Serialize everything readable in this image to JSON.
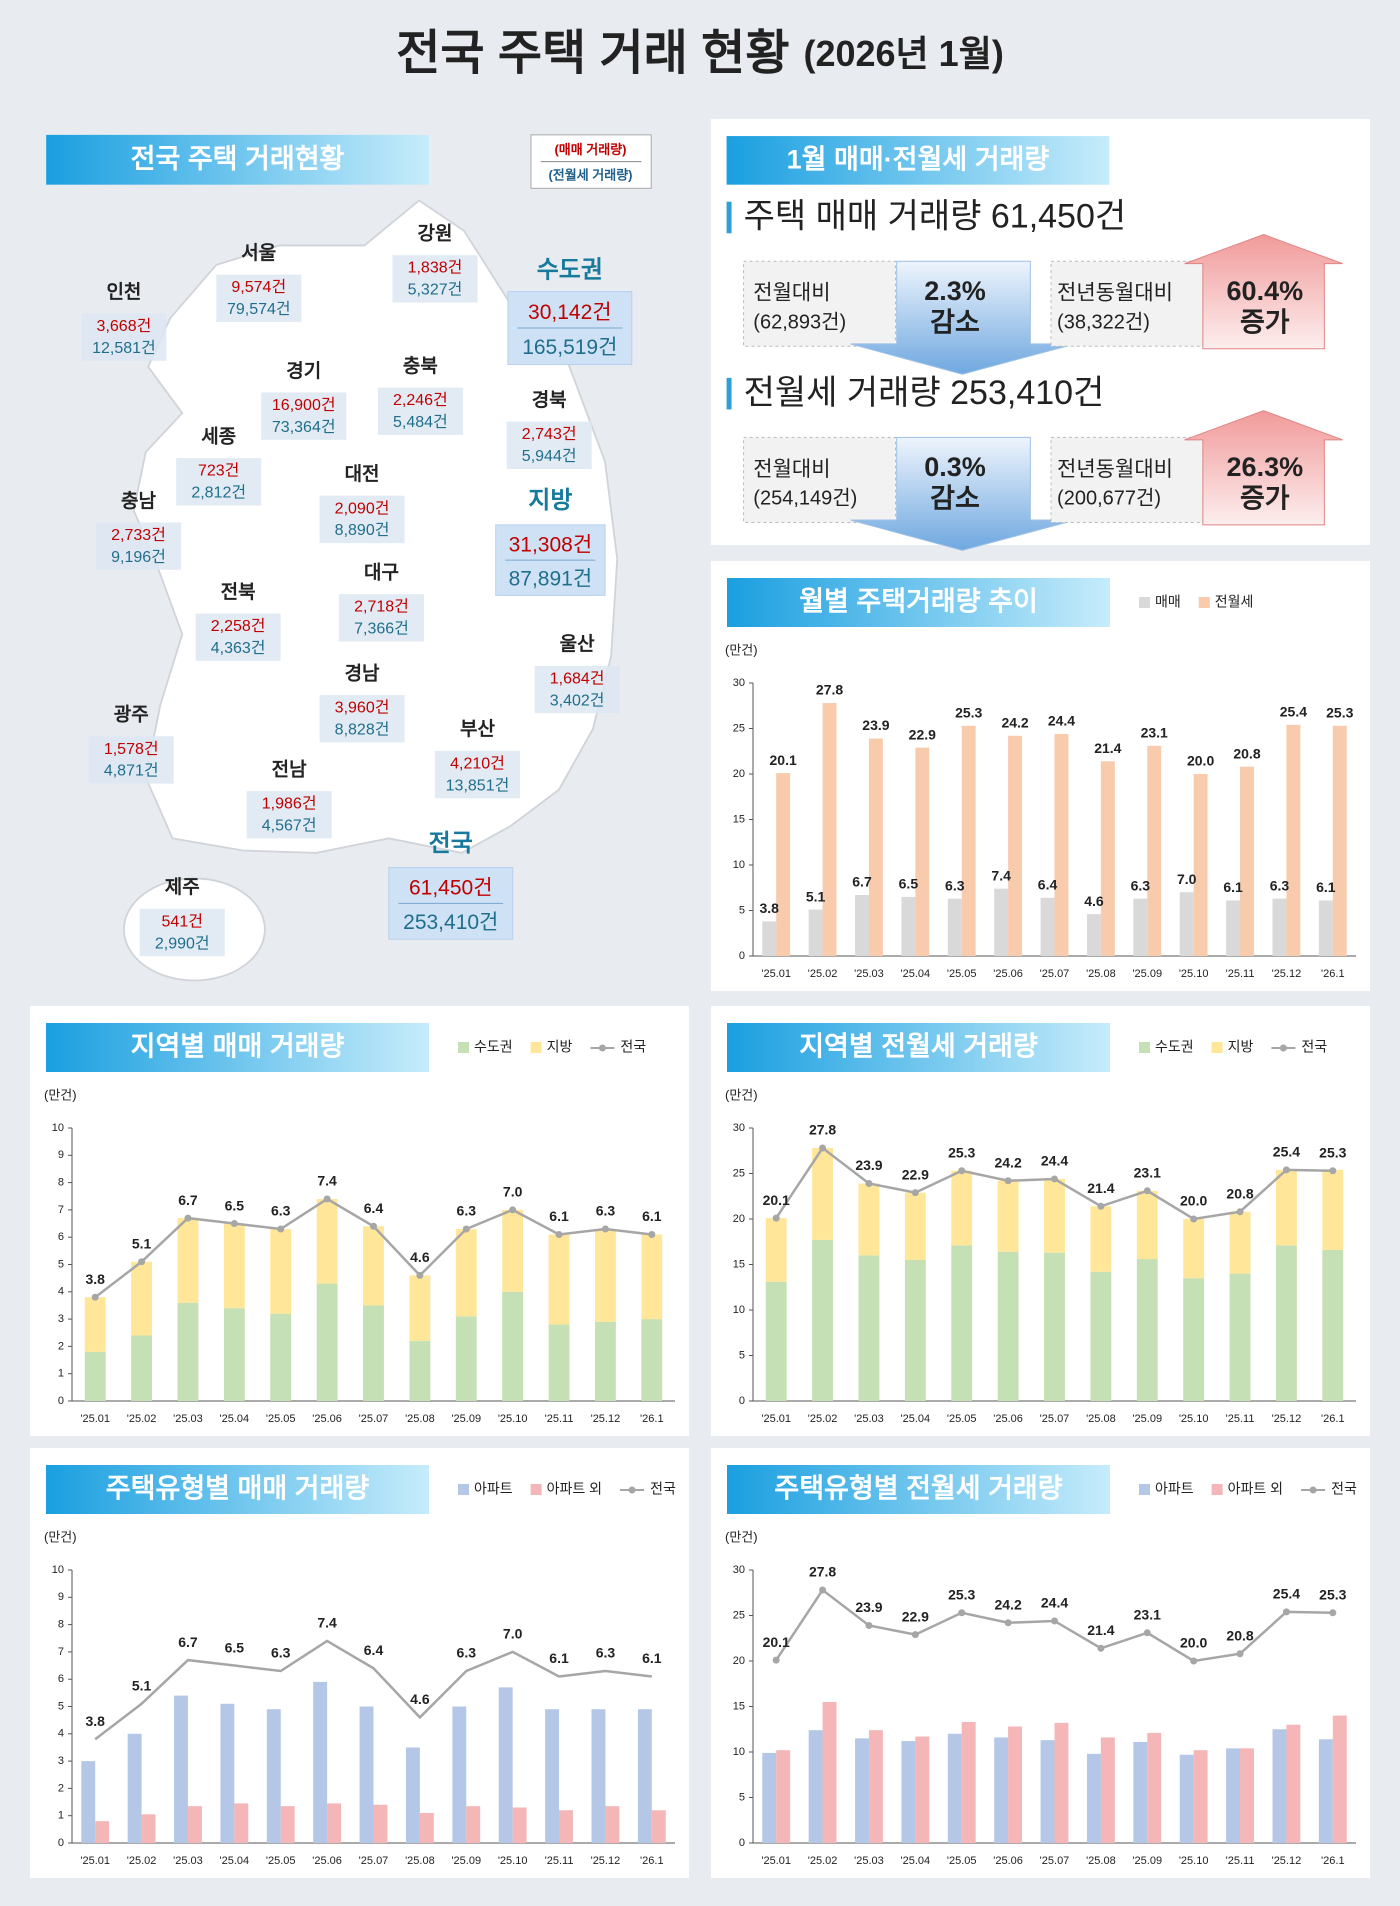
{
  "title": "전국 주택 거래 현황",
  "title_period": "(2026년 1월)",
  "map": {
    "title": "전국 주택 거래현황",
    "legend_sale": "(매매 거래량)",
    "legend_rent": "(전월세 거래량)",
    "regions": [
      {
        "name": "강원",
        "sale": "1,838건",
        "rent": "5,327건"
      },
      {
        "name": "서울",
        "sale": "9,574건",
        "rent": "79,574건"
      },
      {
        "name": "인천",
        "sale": "3,668건",
        "rent": "12,581건"
      },
      {
        "name": "경기",
        "sale": "16,900건",
        "rent": "73,364건"
      },
      {
        "name": "충북",
        "sale": "2,246건",
        "rent": "5,484건"
      },
      {
        "name": "경북",
        "sale": "2,743건",
        "rent": "5,944건"
      },
      {
        "name": "세종",
        "sale": "723건",
        "rent": "2,812건"
      },
      {
        "name": "충남",
        "sale": "2,733건",
        "rent": "9,196건"
      },
      {
        "name": "대전",
        "sale": "2,090건",
        "rent": "8,890건"
      },
      {
        "name": "전북",
        "sale": "2,258건",
        "rent": "4,363건"
      },
      {
        "name": "대구",
        "sale": "2,718건",
        "rent": "7,366건"
      },
      {
        "name": "울산",
        "sale": "1,684건",
        "rent": "3,402건"
      },
      {
        "name": "경남",
        "sale": "3,960건",
        "rent": "8,828건"
      },
      {
        "name": "광주",
        "sale": "1,578건",
        "rent": "4,871건"
      },
      {
        "name": "전남",
        "sale": "1,986건",
        "rent": "4,567건"
      },
      {
        "name": "부산",
        "sale": "4,210건",
        "rent": "13,851건"
      },
      {
        "name": "제주",
        "sale": "541건",
        "rent": "2,990건"
      }
    ],
    "groups": [
      {
        "name": "수도권",
        "sale": "30,142건",
        "rent": "165,519건"
      },
      {
        "name": "지방",
        "sale": "31,308건",
        "rent": "87,891건"
      },
      {
        "name": "전국",
        "sale": "61,450건",
        "rent": "253,410건"
      }
    ]
  },
  "summary": {
    "title": "1월 매매·전월세 거래량",
    "items": [
      {
        "heading": "주택 매매 거래량 61,450건",
        "mom_label": "전월대비",
        "mom_prev": "(62,893건)",
        "mom_change": "2.3%",
        "mom_direction": "감소",
        "yoy_label": "전년동월대비",
        "yoy_prev": "(38,322건)",
        "yoy_change": "60.4%",
        "yoy_direction": "증가"
      },
      {
        "heading": "전월세 거래량 253,410건",
        "mom_label": "전월대비",
        "mom_prev": "(254,149건)",
        "mom_change": "0.3%",
        "mom_direction": "감소",
        "yoy_label": "전년동월대비",
        "yoy_prev": "(200,677건)",
        "yoy_change": "26.3%",
        "yoy_direction": "증가"
      }
    ]
  },
  "chart_data": [
    {
      "type": "bar",
      "title": "월별 주택거래량 추이",
      "y_label": "(만건)",
      "categories": [
        "'25.01",
        "'25.02",
        "'25.03",
        "'25.04",
        "'25.05",
        "'25.06",
        "'25.07",
        "'25.08",
        "'25.09",
        "'25.10",
        "'25.11",
        "'25.12",
        "'26.1"
      ],
      "series": [
        {
          "name": "매매",
          "color": "#d9d9d9",
          "values": [
            3.8,
            5.1,
            6.7,
            6.5,
            6.3,
            7.4,
            6.4,
            4.6,
            6.3,
            7.0,
            6.1,
            6.3,
            6.1
          ],
          "value_labels": [
            "3.8",
            "5.1",
            "6.7",
            "6.5",
            "6.3",
            "7.4",
            "6.4",
            "4.6",
            "6.3",
            "7.0",
            "6.1",
            "6.3",
            "6.1"
          ]
        },
        {
          "name": "전월세",
          "color": "#f8cbad",
          "values": [
            20.1,
            27.8,
            23.9,
            22.9,
            25.3,
            24.2,
            24.4,
            21.4,
            23.1,
            20.0,
            20.8,
            25.4,
            25.3
          ],
          "value_labels": [
            "20.1",
            "27.8",
            "23.9",
            "22.9",
            "25.3",
            "24.2",
            "24.4",
            "21.4",
            "23.1",
            "20.0",
            "20.8",
            "25.4",
            "25.3"
          ]
        }
      ],
      "ylim": [
        0,
        30
      ],
      "yticks": [
        0,
        5,
        10,
        15,
        20,
        25,
        30
      ]
    },
    {
      "type": "stacked_bar",
      "title": "지역별 매매 거래량",
      "y_label": "(만건)",
      "categories": [
        "'25.01",
        "'25.02",
        "'25.03",
        "'25.04",
        "'25.05",
        "'25.06",
        "'25.07",
        "'25.08",
        "'25.09",
        "'25.10",
        "'25.11",
        "'25.12",
        "'26.1"
      ],
      "series": [
        {
          "name": "수도권",
          "color": "#c5e0b4",
          "values": [
            1.8,
            2.4,
            3.6,
            3.4,
            3.2,
            4.3,
            3.5,
            2.2,
            3.1,
            4.0,
            2.8,
            2.9,
            3.0
          ]
        },
        {
          "name": "지방",
          "color": "#ffe699",
          "values": [
            2.0,
            2.7,
            3.1,
            3.1,
            3.1,
            3.1,
            2.9,
            2.4,
            3.2,
            3.0,
            3.3,
            3.4,
            3.1
          ]
        },
        {
          "name": "전국",
          "type": "line",
          "marker": true,
          "color": "#a6a6a6",
          "values": [
            3.8,
            5.1,
            6.7,
            6.5,
            6.3,
            7.4,
            6.4,
            4.6,
            6.3,
            7.0,
            6.1,
            6.3,
            6.1
          ],
          "value_labels": [
            "3.8",
            "5.1",
            "6.7",
            "6.5",
            "6.3",
            "7.4",
            "6.4",
            "4.6",
            "6.3",
            "7.0",
            "6.1",
            "6.3",
            "6.1"
          ]
        }
      ],
      "ylim": [
        0,
        10
      ],
      "yticks": [
        0,
        1,
        2,
        3,
        4,
        5,
        6,
        7,
        8,
        9,
        10
      ]
    },
    {
      "type": "stacked_bar",
      "title": "지역별 전월세 거래량",
      "y_label": "(만건)",
      "categories": [
        "'25.01",
        "'25.02",
        "'25.03",
        "'25.04",
        "'25.05",
        "'25.06",
        "'25.07",
        "'25.08",
        "'25.09",
        "'25.10",
        "'25.11",
        "'25.12",
        "'26.1"
      ],
      "series": [
        {
          "name": "수도권",
          "color": "#c5e0b4",
          "values": [
            13.1,
            17.7,
            16.0,
            15.5,
            17.1,
            16.4,
            16.3,
            14.2,
            15.6,
            13.5,
            14.0,
            17.1,
            16.6
          ]
        },
        {
          "name": "지방",
          "color": "#ffe699",
          "values": [
            7.0,
            10.1,
            7.9,
            7.4,
            8.2,
            7.8,
            8.1,
            7.2,
            7.5,
            6.5,
            6.8,
            8.3,
            8.8
          ]
        },
        {
          "name": "전국",
          "type": "line",
          "marker": true,
          "color": "#a6a6a6",
          "values": [
            20.1,
            27.8,
            23.9,
            22.9,
            25.3,
            24.2,
            24.4,
            21.4,
            23.1,
            20.0,
            20.8,
            25.4,
            25.3
          ],
          "value_labels": [
            "20.1",
            "27.8",
            "23.9",
            "22.9",
            "25.3",
            "24.2",
            "24.4",
            "21.4",
            "23.1",
            "20.0",
            "20.8",
            "25.4",
            "25.3"
          ]
        }
      ],
      "ylim": [
        0,
        30
      ],
      "yticks": [
        0,
        5,
        10,
        15,
        20,
        25,
        30
      ]
    },
    {
      "type": "bar",
      "title": "주택유형별 매매 거래량",
      "y_label": "(만건)",
      "categories": [
        "'25.01",
        "'25.02",
        "'25.03",
        "'25.04",
        "'25.05",
        "'25.06",
        "'25.07",
        "'25.08",
        "'25.09",
        "'25.10",
        "'25.11",
        "'25.12",
        "'26.1"
      ],
      "series": [
        {
          "name": "아파트",
          "color": "#b4c7e7",
          "values": [
            3.0,
            4.0,
            5.4,
            5.1,
            4.9,
            5.9,
            5.0,
            3.5,
            5.0,
            5.7,
            4.9,
            4.9,
            4.9
          ]
        },
        {
          "name": "아파트 외",
          "color": "#f4b6b6",
          "values": [
            0.8,
            1.05,
            1.35,
            1.45,
            1.35,
            1.45,
            1.4,
            1.1,
            1.35,
            1.3,
            1.2,
            1.35,
            1.2
          ]
        },
        {
          "name": "전국",
          "type": "line",
          "marker": false,
          "color": "#a6a6a6",
          "values": [
            3.8,
            5.1,
            6.7,
            6.5,
            6.3,
            7.4,
            6.4,
            4.6,
            6.3,
            7.0,
            6.1,
            6.3,
            6.1
          ],
          "value_labels": [
            "3.8",
            "5.1",
            "6.7",
            "6.5",
            "6.3",
            "7.4",
            "6.4",
            "4.6",
            "6.3",
            "7.0",
            "6.1",
            "6.3",
            "6.1"
          ]
        }
      ],
      "ylim": [
        0,
        10
      ],
      "yticks": [
        0,
        1,
        2,
        3,
        4,
        5,
        6,
        7,
        8,
        9,
        10
      ]
    },
    {
      "type": "bar",
      "title": "주택유형별 전월세 거래량",
      "y_label": "(만건)",
      "categories": [
        "'25.01",
        "'25.02",
        "'25.03",
        "'25.04",
        "'25.05",
        "'25.06",
        "'25.07",
        "'25.08",
        "'25.09",
        "'25.10",
        "'25.11",
        "'25.12",
        "'26.1"
      ],
      "series": [
        {
          "name": "아파트",
          "color": "#b4c7e7",
          "values": [
            9.9,
            12.4,
            11.5,
            11.2,
            12.0,
            11.6,
            11.3,
            9.8,
            11.1,
            9.7,
            10.4,
            12.5,
            11.4
          ]
        },
        {
          "name": "아파트 외",
          "color": "#f4b6b6",
          "values": [
            10.2,
            15.5,
            12.4,
            11.7,
            13.3,
            12.8,
            13.2,
            11.6,
            12.1,
            10.2,
            10.4,
            13.0,
            14.0
          ]
        },
        {
          "name": "전국",
          "type": "line",
          "marker": true,
          "color": "#a6a6a6",
          "values": [
            20.1,
            27.8,
            23.9,
            22.9,
            25.3,
            24.2,
            24.4,
            21.4,
            23.1,
            20.0,
            20.8,
            25.4,
            25.3
          ],
          "value_labels": [
            "20.1",
            "27.8",
            "23.9",
            "22.9",
            "25.3",
            "24.2",
            "24.4",
            "21.4",
            "23.1",
            "20.0",
            "20.8",
            "25.4",
            "25.3"
          ]
        }
      ],
      "ylim": [
        0,
        30
      ],
      "yticks": [
        0,
        5,
        10,
        15,
        20,
        25,
        30
      ]
    }
  ]
}
